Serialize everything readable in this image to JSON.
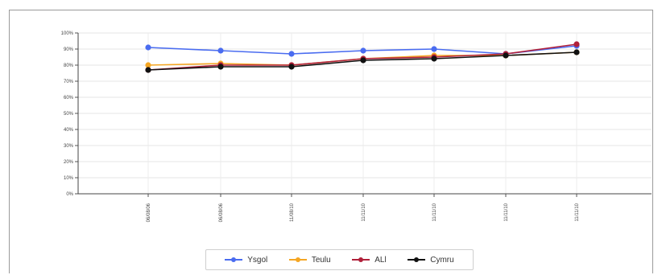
{
  "chart_data": {
    "type": "line",
    "categories": [
      "06/08/06",
      "06/08/06",
      "11/08/10",
      "11/11/10",
      "11/11/10",
      "11/11/10",
      "11/11/10"
    ],
    "ylim": [
      0,
      100
    ],
    "yticks": [
      "0%",
      "10%",
      "20%",
      "30%",
      "40%",
      "50%",
      "60%",
      "70%",
      "80%",
      "90%",
      "100%"
    ],
    "grid": true,
    "legend": "bottom",
    "series": [
      {
        "name": "Ysgol",
        "color": "#4a6cf0",
        "values": [
          91,
          89,
          87,
          89,
          90,
          87,
          92
        ]
      },
      {
        "name": "Teulu",
        "color": "#f5a623",
        "values": [
          80,
          81,
          80,
          84,
          86,
          86,
          88
        ]
      },
      {
        "name": "ALl",
        "color": "#b0203a",
        "values": [
          77,
          80,
          80,
          84,
          85,
          87,
          93
        ]
      },
      {
        "name": "Cymru",
        "color": "#111111",
        "values": [
          77,
          79,
          79,
          83,
          84,
          86,
          88
        ]
      }
    ]
  }
}
